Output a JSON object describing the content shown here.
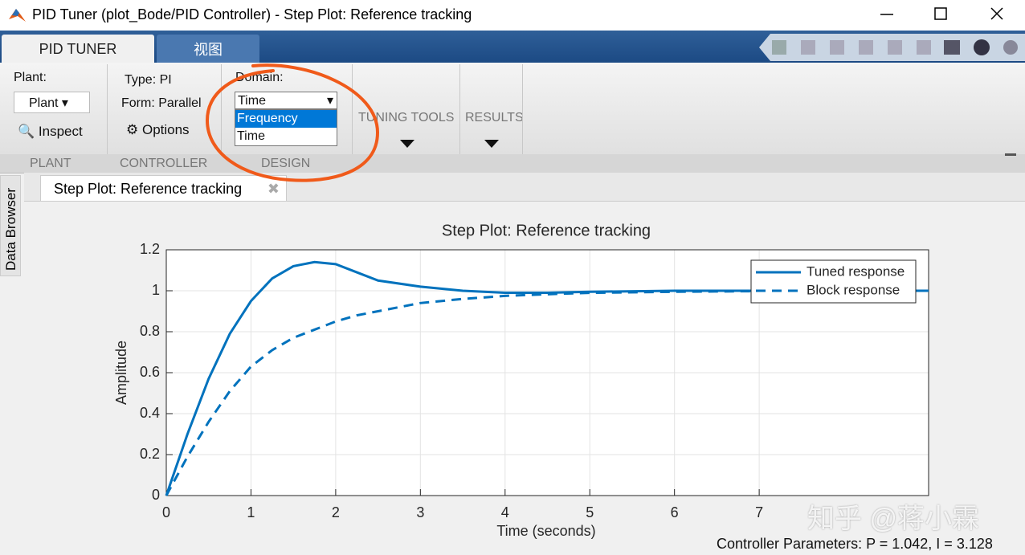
{
  "window": {
    "title": "PID Tuner (plot_Bode/PID Controller) - Step Plot: Reference tracking",
    "tabs": [
      "PID TUNER",
      "视图"
    ]
  },
  "toolstrip": {
    "plant_label": "Plant:",
    "plant_dropdown": "Plant",
    "inspect": "Inspect",
    "type": "Type: PI",
    "form": "Form: Parallel",
    "options": "Options",
    "domain_label": "Domain:",
    "domain_value": "Time",
    "domain_options": [
      "Frequency",
      "Time"
    ],
    "tuning_tools": "TUNING TOOLS",
    "results": "RESULTS",
    "sections": [
      "PLANT",
      "CONTROLLER",
      "DESIGN"
    ]
  },
  "document_tab": "Step Plot: Reference tracking",
  "side_tab": "Data Browser",
  "chart_data": {
    "type": "line",
    "title": "Step Plot: Reference tracking",
    "x_label": "Time (seconds)",
    "y_label": "Amplitude",
    "x": [
      0,
      0.25,
      0.5,
      0.75,
      1,
      1.25,
      1.5,
      1.75,
      2,
      2.25,
      2.5,
      3,
      3.5,
      4,
      4.5,
      5,
      6,
      7,
      8,
      9
    ],
    "series": [
      {
        "name": "Tuned response",
        "color": "#0072bd",
        "dash": false,
        "values": [
          0,
          0.3,
          0.57,
          0.79,
          0.95,
          1.06,
          1.12,
          1.14,
          1.13,
          1.09,
          1.05,
          1.02,
          1.0,
          0.99,
          0.99,
          0.995,
          1.0,
          1.0,
          1.0,
          1.0
        ]
      },
      {
        "name": "Block response",
        "color": "#0072bd",
        "dash": true,
        "values": [
          0,
          0.19,
          0.36,
          0.51,
          0.63,
          0.71,
          0.77,
          0.81,
          0.85,
          0.88,
          0.9,
          0.94,
          0.96,
          0.975,
          0.983,
          0.99,
          0.995,
          0.998,
          1.0,
          1.0
        ]
      }
    ],
    "xlim": [
      0,
      9
    ],
    "xticks": [
      0,
      1,
      2,
      3,
      4,
      5,
      6,
      7
    ],
    "ylim": [
      0,
      1.2
    ],
    "yticks": [
      0,
      0.2,
      0.4,
      0.6,
      0.8,
      1,
      1.2
    ],
    "grid": true,
    "legend": "upper-right"
  },
  "status": "Controller Parameters: P = 1.042, I = 3.128",
  "watermark": "知乎 @蒋小霖"
}
